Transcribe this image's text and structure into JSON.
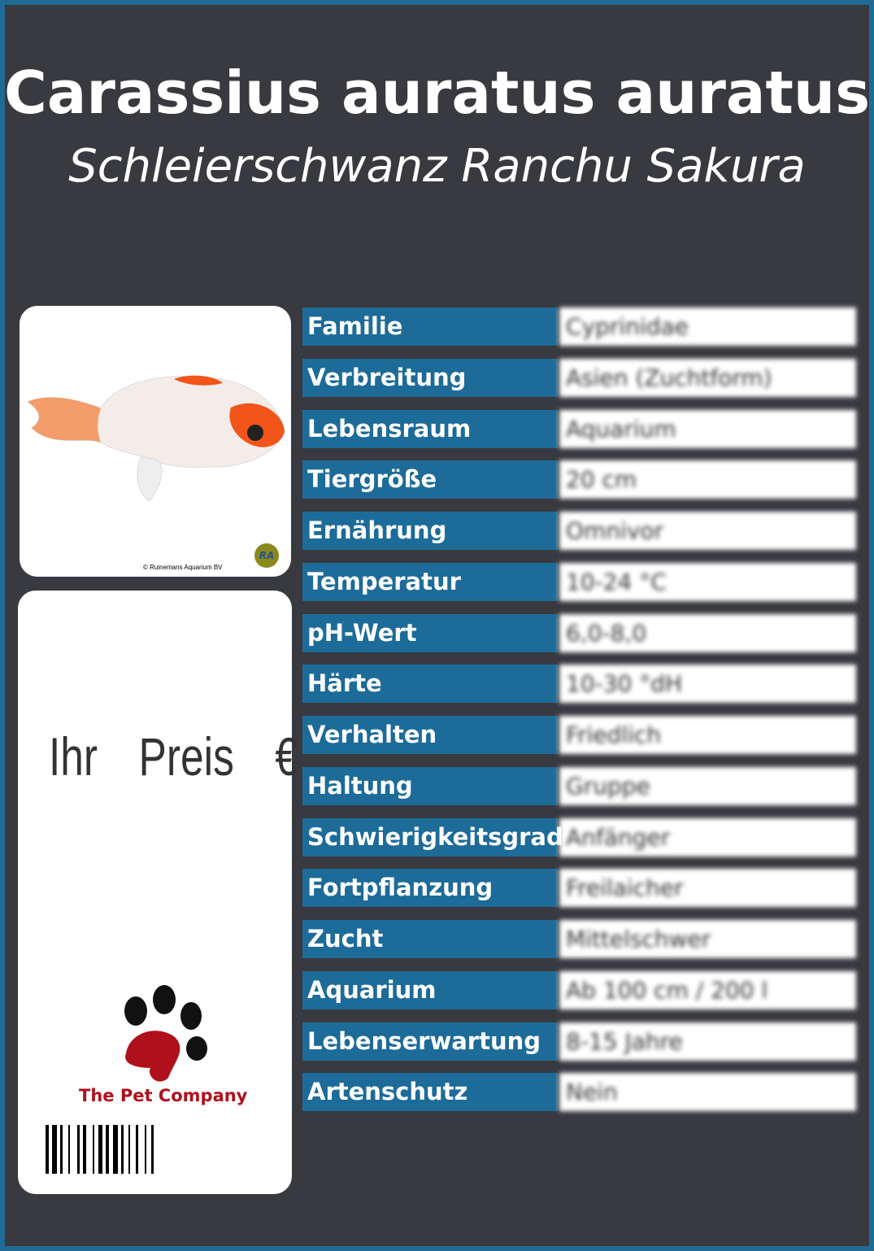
{
  "header": {
    "title": "Carassius auratus auratus",
    "subtitle": "Schleierschwanz Ranchu Sakura"
  },
  "photo": {
    "credit": "© Ruinemans Aquarium BV",
    "logo_text": "RA"
  },
  "price": {
    "label": "Ihr  Preis  €"
  },
  "brand": {
    "name": "The Pet Company",
    "paw_color": "#b0101c"
  },
  "colors": {
    "border": "#1f6b96",
    "background": "#393a3f",
    "label_bg": "#1d6b98"
  },
  "facts": [
    {
      "label": "Familie",
      "value": "Cyprinidae"
    },
    {
      "label": "Verbreitung",
      "value": "Asien (Zuchtform)"
    },
    {
      "label": "Lebensraum",
      "value": "Aquarium"
    },
    {
      "label": "Tiergröße",
      "value": "20 cm"
    },
    {
      "label": "Ernährung",
      "value": "Omnivor"
    },
    {
      "label": "Temperatur",
      "value": "10-24 °C"
    },
    {
      "label": "pH-Wert",
      "value": "6,0-8,0"
    },
    {
      "label": "Härte",
      "value": "10-30 °dH"
    },
    {
      "label": "Verhalten",
      "value": "Friedlich"
    },
    {
      "label": "Haltung",
      "value": "Gruppe"
    },
    {
      "label": "Schwierigkeitsgrad",
      "value": "Anfänger"
    },
    {
      "label": "Fortpflanzung",
      "value": "Freilaicher"
    },
    {
      "label": "Zucht",
      "value": "Mittelschwer"
    },
    {
      "label": "Aquarium",
      "value": "Ab 100 cm / 200 l"
    },
    {
      "label": "Lebenserwartung",
      "value": "8-15 Jahre"
    },
    {
      "label": "Artenschutz",
      "value": "Nein"
    }
  ]
}
